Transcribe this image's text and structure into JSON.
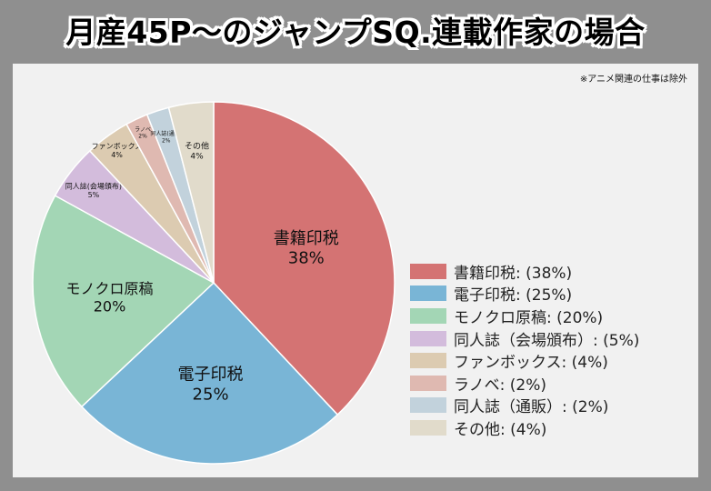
{
  "title": "月産45P～のジャンプSQ.連載作家の場合",
  "note": "※アニメ関連の仕事は除外",
  "chart_data": {
    "type": "pie",
    "start_angle_deg": 90,
    "direction": "clockwise",
    "legend_position": "right",
    "slices": [
      {
        "label": "書籍印税",
        "value": 38,
        "pct_label": "38%",
        "legend": "書籍印税:  (38%)",
        "color": "#d47373"
      },
      {
        "label": "電子印税",
        "value": 25,
        "pct_label": "25%",
        "legend": "電子印税:  (25%)",
        "color": "#79b5d6"
      },
      {
        "label": "モノクロ原稿",
        "value": 20,
        "pct_label": "20%",
        "legend": "モノクロ原稿:  (20%)",
        "color": "#a3d6b5"
      },
      {
        "label": "同人誌(会場頒布)",
        "value": 5,
        "pct_label": "5%",
        "legend": "同人誌（会場頒布）: (5%)",
        "color": "#d3bcdc"
      },
      {
        "label": "ファンボックス",
        "value": 4,
        "pct_label": "4%",
        "legend": "ファンボックス: (4%)",
        "color": "#dccbb1"
      },
      {
        "label": "ラノベ",
        "value": 2,
        "pct_label": "2%",
        "legend": "ラノベ: (2%)",
        "color": "#dfb9b1"
      },
      {
        "label": "同人誌(通販)",
        "value": 2,
        "pct_label": "2%",
        "legend": "同人誌（通販）: (2%)",
        "color": "#c2d2dc"
      },
      {
        "label": "その他",
        "value": 4,
        "pct_label": "4%",
        "legend": "その他: (4%)",
        "color": "#e1dbcb"
      }
    ]
  }
}
